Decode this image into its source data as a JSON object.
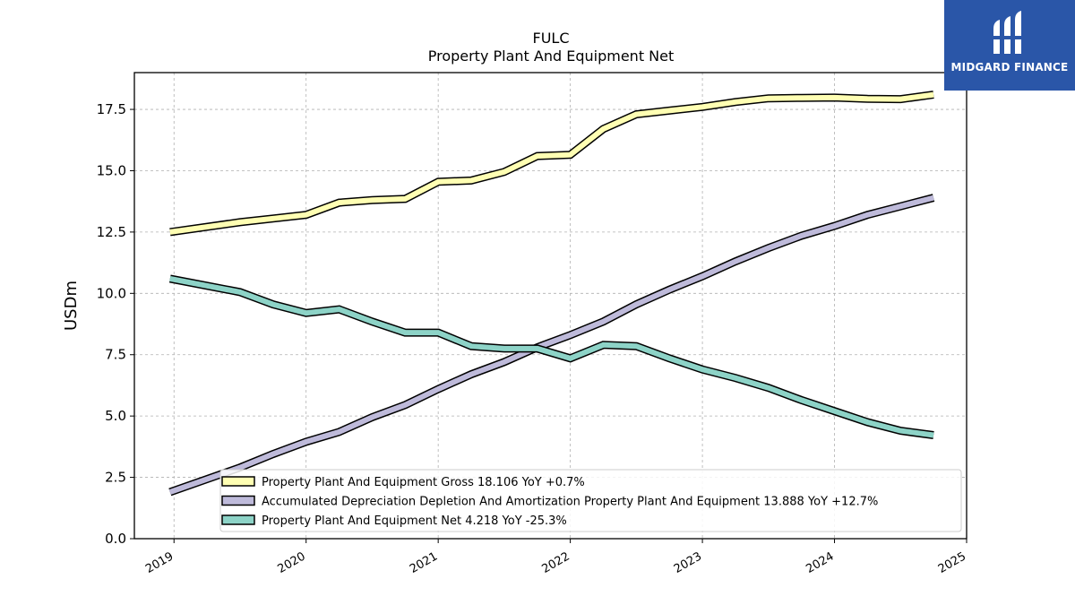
{
  "brand": {
    "name": "MIDGARD FINANCE",
    "logo_color": "#2a56a8"
  },
  "chart_data": {
    "type": "line",
    "title": "FULC",
    "subtitle": "Property Plant And Equipment Net",
    "xlabel": "",
    "ylabel": "USDm",
    "xlim": [
      2018.7,
      2025.0
    ],
    "ylim": [
      0,
      19
    ],
    "x_ticks": [
      "2019",
      "2020",
      "2021",
      "2022",
      "2023",
      "2024",
      "2025"
    ],
    "y_ticks": [
      "0.0",
      "2.5",
      "5.0",
      "7.5",
      "10.0",
      "12.5",
      "15.0",
      "17.5"
    ],
    "grid": true,
    "legend_position": "bottom-center",
    "x": [
      2018.97,
      2019.5,
      2019.75,
      2020.0,
      2020.25,
      2020.5,
      2020.75,
      2021.0,
      2021.25,
      2021.5,
      2021.75,
      2022.0,
      2022.25,
      2022.5,
      2022.75,
      2023.0,
      2023.25,
      2023.5,
      2023.75,
      2024.0,
      2024.25,
      2024.5,
      2024.75
    ],
    "series": [
      {
        "name": "Property Plant And Equipment Gross",
        "legend": "Property Plant And Equipment Gross  18.106 YoY +0.7%",
        "color": "#ffffb3",
        "values": [
          12.5,
          12.9,
          13.05,
          13.2,
          13.7,
          13.8,
          13.85,
          14.55,
          14.6,
          14.95,
          15.6,
          15.65,
          16.7,
          17.3,
          17.45,
          17.6,
          17.8,
          17.95,
          17.97,
          17.98,
          17.93,
          17.92,
          18.1
        ]
      },
      {
        "name": "Accumulated Depreciation Depletion And Amortization Property Plant And Equipment",
        "legend": "Accumulated Depreciation Depletion And Amortization Property Plant And Equipment  13.888 YoY +12.7%",
        "color": "#bebada",
        "values": [
          1.9,
          2.9,
          3.45,
          3.95,
          4.35,
          4.95,
          5.45,
          6.1,
          6.7,
          7.2,
          7.8,
          8.3,
          8.85,
          9.55,
          10.15,
          10.7,
          11.3,
          11.85,
          12.35,
          12.75,
          13.2,
          13.55,
          13.9
        ]
      },
      {
        "name": "Property Plant And Equipment Net",
        "legend": "Property Plant And Equipment Net  4.218 YoY -25.3%",
        "color": "#8dd3c7",
        "values": [
          10.6,
          10.05,
          9.55,
          9.2,
          9.35,
          8.85,
          8.4,
          8.4,
          7.85,
          7.75,
          7.75,
          7.35,
          7.9,
          7.85,
          7.35,
          6.9,
          6.55,
          6.15,
          5.65,
          5.2,
          4.75,
          4.4,
          4.22
        ]
      }
    ]
  }
}
